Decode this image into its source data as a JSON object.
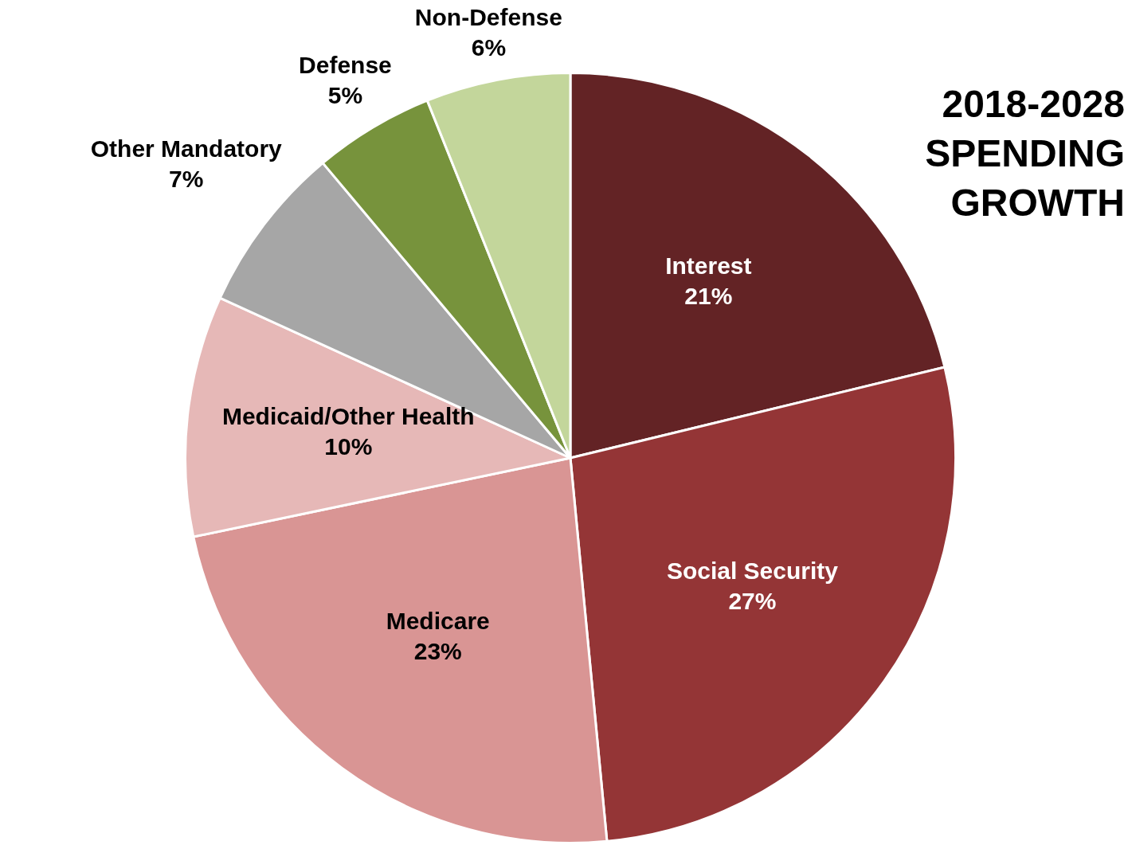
{
  "chart_data": {
    "type": "pie",
    "title": "2018-2028 SPENDING GROWTH",
    "categories": [
      "Interest",
      "Social Security",
      "Medicare",
      "Medicaid/Other Health",
      "Other Mandatory",
      "Defense",
      "Non-Defense"
    ],
    "values": [
      21,
      27,
      23,
      10,
      7,
      5,
      6
    ],
    "value_labels": [
      "21%",
      "27%",
      "23%",
      "10%",
      "7%",
      "5%",
      "6%"
    ],
    "colors": [
      "#632325",
      "#943536",
      "#d99594",
      "#e6b8b7",
      "#a6a6a6",
      "#77933c",
      "#c3d69b"
    ],
    "legend": false
  }
}
